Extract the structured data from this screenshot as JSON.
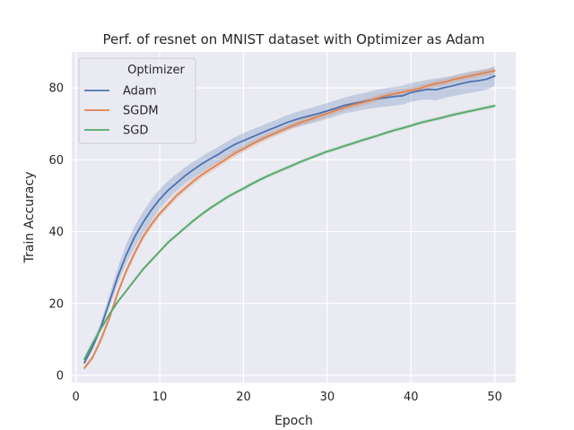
{
  "chart_data": {
    "type": "line",
    "title": "Perf. of resnet on MNIST dataset with Optimizer as Adam",
    "xlabel": "Epoch",
    "ylabel": "Train Accuracy",
    "xlim": [
      -0.5,
      52.5
    ],
    "ylim": [
      -2,
      90
    ],
    "xticks": [
      0,
      10,
      20,
      30,
      40,
      50
    ],
    "yticks": [
      0,
      20,
      40,
      60,
      80
    ],
    "grid": true,
    "legend": {
      "title": "Optimizer",
      "placement": "top-left"
    },
    "x": [
      1,
      2,
      3,
      4,
      5,
      6,
      7,
      8,
      9,
      10,
      11,
      12,
      13,
      14,
      15,
      16,
      17,
      18,
      19,
      20,
      21,
      22,
      23,
      24,
      25,
      26,
      27,
      28,
      29,
      30,
      31,
      32,
      33,
      34,
      35,
      36,
      37,
      38,
      39,
      40,
      41,
      42,
      43,
      44,
      45,
      46,
      47,
      48,
      49,
      50
    ],
    "series": [
      {
        "name": "Adam",
        "color": "#4c72b0",
        "values": [
          3.5,
          8,
          13.5,
          20.5,
          27.5,
          33.5,
          38.5,
          42.5,
          46,
          49,
          51.5,
          53.5,
          55.5,
          57.2,
          58.8,
          60.2,
          61.5,
          63,
          64.3,
          65.3,
          66.3,
          67.3,
          68.3,
          69.2,
          70.2,
          71,
          71.7,
          72.3,
          72.9,
          73.6,
          74.3,
          75.1,
          75.6,
          76,
          76.5,
          77,
          77.3,
          77.6,
          77.8,
          78.7,
          79.2,
          79.6,
          79.5,
          80.1,
          80.6,
          81.2,
          81.7,
          82,
          82.4,
          83.3
        ],
        "lower": [
          3,
          7,
          12.5,
          19,
          25.5,
          31,
          35.5,
          39.5,
          43,
          46.3,
          49,
          51.3,
          53.3,
          55,
          56.6,
          58,
          59.3,
          60.8,
          62.1,
          63.2,
          64.3,
          65.2,
          66.2,
          67.1,
          68.1,
          68.9,
          69.5,
          70.1,
          70.7,
          71.4,
          72.1,
          72.9,
          73.3,
          73.8,
          74.2,
          74.5,
          74.8,
          75,
          75.4,
          76.1,
          76.6,
          76.8,
          76.5,
          77.2,
          77.7,
          78.2,
          78.6,
          79,
          79.5,
          80.5
        ],
        "upper": [
          4.2,
          9.2,
          15,
          22.5,
          30,
          36.5,
          41.5,
          45.5,
          49,
          51.8,
          54.1,
          56,
          57.8,
          59.4,
          60.9,
          62.3,
          63.6,
          65,
          66.3,
          67.4,
          68.4,
          69.3,
          70.3,
          71.2,
          72.2,
          73,
          73.8,
          74.4,
          75.1,
          75.8,
          76.5,
          77.3,
          77.9,
          78.4,
          78.9,
          79.5,
          79.9,
          80.3,
          80.6,
          81.4,
          81.8,
          82.3,
          82.6,
          83,
          83.4,
          84,
          84.5,
          84.9,
          85.3,
          86
        ]
      },
      {
        "name": "SGDM",
        "color": "#dd8452",
        "values": [
          2,
          5,
          10,
          16,
          23,
          29,
          34,
          38.5,
          42,
          45,
          47.5,
          50,
          52,
          54,
          55.8,
          57.3,
          58.8,
          60.3,
          61.8,
          63,
          64.3,
          65.5,
          66.6,
          67.6,
          68.6,
          69.6,
          70.5,
          71.3,
          72.1,
          72.9,
          73.7,
          74.5,
          75.2,
          75.8,
          76.4,
          77.2,
          77.8,
          78.3,
          78.8,
          79.3,
          79.8,
          80.6,
          81.2,
          81.6,
          82.3,
          82.8,
          83.3,
          83.8,
          84.3,
          84.8
        ],
        "lower": [
          1.5,
          4.3,
          9.2,
          15,
          22,
          28,
          33,
          37.5,
          41,
          44,
          46.6,
          49.1,
          51.1,
          53.1,
          54.9,
          56.4,
          57.9,
          59.4,
          60.9,
          62.1,
          63.4,
          64.6,
          65.7,
          66.7,
          67.7,
          68.7,
          69.6,
          70.4,
          71.2,
          72,
          72.8,
          73.6,
          74.3,
          74.9,
          75.5,
          76.3,
          76.9,
          77.4,
          77.9,
          78.4,
          78.9,
          79.7,
          80.3,
          80.7,
          81.4,
          81.9,
          82.4,
          82.9,
          83.4,
          83.8
        ],
        "upper": [
          2.6,
          5.8,
          11,
          17,
          24,
          30,
          35,
          39.5,
          43,
          46,
          48.4,
          50.9,
          52.9,
          54.9,
          56.7,
          58.2,
          59.7,
          61.2,
          62.7,
          63.9,
          65.2,
          66.4,
          67.5,
          68.5,
          69.5,
          70.5,
          71.4,
          72.2,
          73,
          73.8,
          74.6,
          75.4,
          76.1,
          76.7,
          77.3,
          78.1,
          78.7,
          79.2,
          79.7,
          80.2,
          80.7,
          81.5,
          82.1,
          82.5,
          83.2,
          83.7,
          84.2,
          84.7,
          85.2,
          85.8
        ]
      },
      {
        "name": "SGD",
        "color": "#55a868",
        "values": [
          4.5,
          9,
          13,
          17,
          20.5,
          23.5,
          26.5,
          29.5,
          32,
          34.5,
          37,
          39,
          41,
          43,
          44.8,
          46.5,
          48,
          49.5,
          50.8,
          52,
          53.3,
          54.5,
          55.6,
          56.6,
          57.6,
          58.6,
          59.6,
          60.5,
          61.4,
          62.3,
          63,
          63.8,
          64.5,
          65.3,
          66,
          66.7,
          67.5,
          68.2,
          68.8,
          69.5,
          70.2,
          70.8,
          71.3,
          71.9,
          72.5,
          73,
          73.5,
          74,
          74.5,
          75
        ],
        "lower": [
          4,
          8.5,
          12.5,
          16.5,
          20,
          23,
          26,
          29,
          31.5,
          34,
          36.5,
          38.5,
          40.5,
          42.5,
          44.3,
          46,
          47.5,
          49,
          50.3,
          51.5,
          52.8,
          54,
          55.1,
          56.1,
          57.1,
          58.1,
          59.1,
          60,
          60.9,
          61.8,
          62.5,
          63.3,
          64,
          64.8,
          65.5,
          66.2,
          67,
          67.7,
          68.3,
          69,
          69.7,
          70.3,
          70.8,
          71.4,
          72,
          72.5,
          73,
          73.5,
          74,
          74.5
        ],
        "upper": [
          5,
          9.5,
          13.5,
          17.5,
          21,
          24,
          27,
          30,
          32.5,
          35,
          37.5,
          39.5,
          41.5,
          43.5,
          45.3,
          47,
          48.5,
          50,
          51.3,
          52.5,
          53.8,
          55,
          56.1,
          57.1,
          58.1,
          59.1,
          60.1,
          61,
          61.9,
          62.8,
          63.5,
          64.3,
          65,
          65.8,
          66.5,
          67.2,
          68,
          68.7,
          69.3,
          70,
          70.7,
          71.3,
          71.8,
          72.4,
          73,
          73.5,
          74,
          74.5,
          75,
          75.5
        ]
      }
    ]
  }
}
